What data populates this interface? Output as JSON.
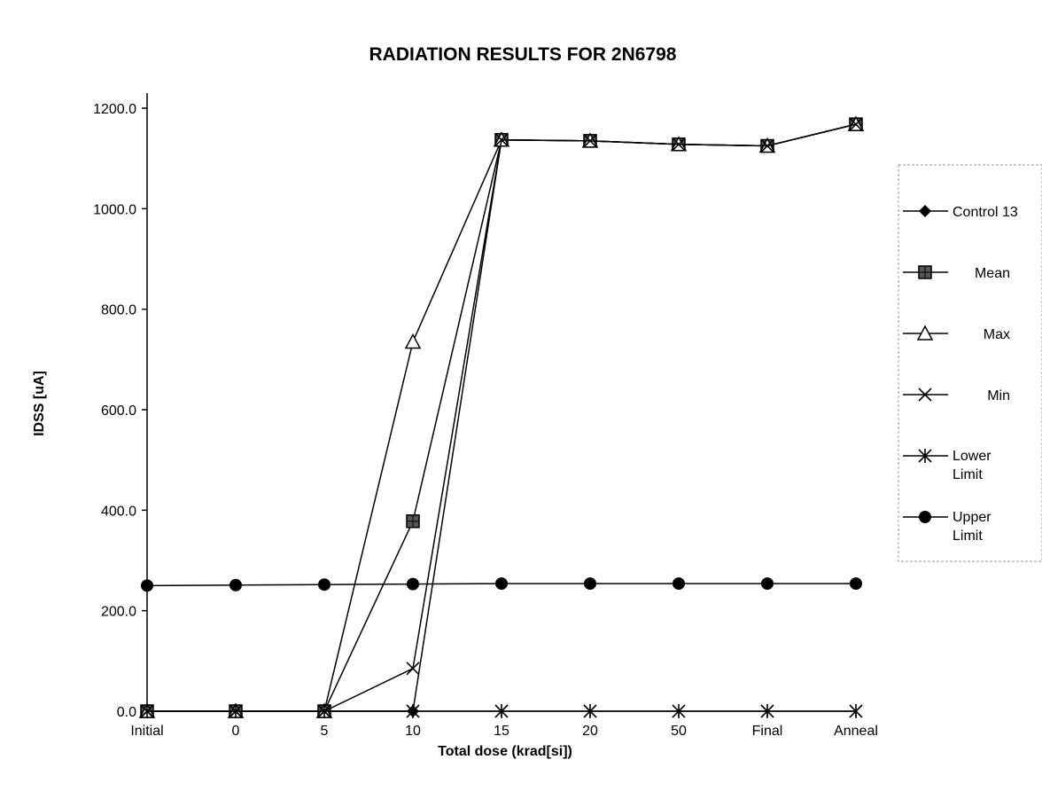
{
  "chart_data": {
    "type": "line",
    "title": "RADIATION RESULTS FOR 2N6798",
    "xlabel": "Total dose (krad[si])",
    "ylabel": "IDSS [uA]",
    "categories": [
      "Initial",
      "0",
      "5",
      "10",
      "15",
      "20",
      "50",
      "Final",
      "Anneal"
    ],
    "ylim": [
      0,
      1200
    ],
    "yticks": [
      "0.0",
      "200.0",
      "400.0",
      "600.0",
      "800.0",
      "1000.0",
      "1200.0"
    ],
    "grid": false,
    "legend_position": "right",
    "series": [
      {
        "name": "Control 13",
        "marker": "diamond",
        "values": [
          0,
          0,
          0,
          0,
          1137,
          1135,
          1128,
          1125,
          1168
        ]
      },
      {
        "name": "Mean",
        "marker": "square",
        "values": [
          0,
          0,
          0,
          378,
          1137,
          1135,
          1128,
          1125,
          1168
        ]
      },
      {
        "name": "Max",
        "marker": "triangle",
        "values": [
          0,
          0,
          0,
          735,
          1137,
          1135,
          1128,
          1125,
          1168
        ]
      },
      {
        "name": "Min",
        "marker": "x",
        "values": [
          0,
          0,
          0,
          85,
          1137,
          1135,
          1128,
          1125,
          1168
        ]
      },
      {
        "name": "Lower Limit",
        "marker": "asterisk",
        "values": [
          0,
          0,
          0,
          0,
          0,
          0,
          0,
          0,
          0
        ]
      },
      {
        "name": "Upper Limit",
        "marker": "circle",
        "values": [
          250,
          251,
          252,
          253,
          254,
          254,
          254,
          254,
          254
        ]
      }
    ]
  }
}
